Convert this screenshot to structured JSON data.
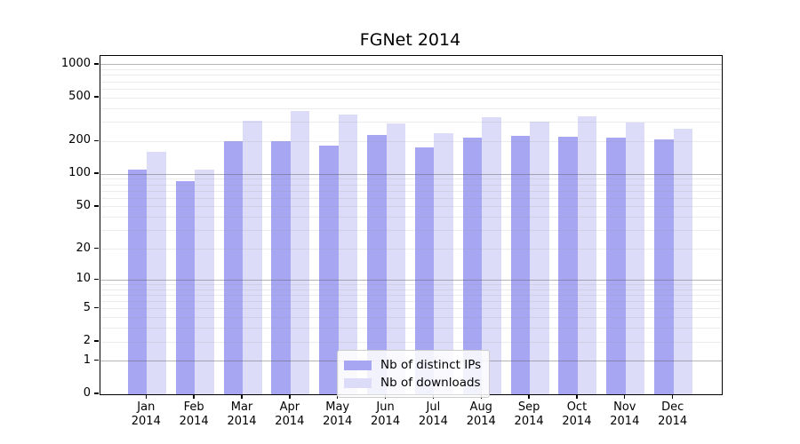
{
  "chart_data": {
    "type": "bar",
    "title": "FGNet 2014",
    "categories": [
      "Jan 2014",
      "Feb 2014",
      "Mar 2014",
      "Apr 2014",
      "May 2014",
      "Jun 2014",
      "Jul 2014",
      "Aug 2014",
      "Sep 2014",
      "Oct 2014",
      "Nov 2014",
      "Dec 2014"
    ],
    "months": [
      "Jan",
      "Feb",
      "Mar",
      "Apr",
      "May",
      "Jun",
      "Jul",
      "Aug",
      "Sep",
      "Oct",
      "Nov",
      "Dec"
    ],
    "year_label": "2014",
    "series": [
      {
        "name": "Nb of distinct IPs",
        "color": "#a6a6f2",
        "values": [
          110,
          86,
          201,
          200,
          183,
          230,
          177,
          218,
          226,
          222,
          215,
          207
        ]
      },
      {
        "name": "Nb of downloads",
        "color": "#dcdcf8",
        "values": [
          161,
          111,
          306,
          380,
          355,
          294,
          236,
          333,
          303,
          340,
          300,
          259
        ]
      }
    ],
    "xlabel": "",
    "ylabel": "",
    "yscale": "symlog",
    "ylim": [
      0,
      1200
    ],
    "yticks": [
      0,
      1,
      2,
      5,
      10,
      20,
      50,
      100,
      200,
      500,
      1000
    ],
    "grid": "on",
    "major_grid_values": [
      1,
      10,
      100,
      1000
    ],
    "legend_position": "lower center",
    "colors": {
      "axis": "#000000",
      "major_grid": "#b3b3b3",
      "minor_grid": "#e9e9e9",
      "background": "#ffffff"
    }
  }
}
